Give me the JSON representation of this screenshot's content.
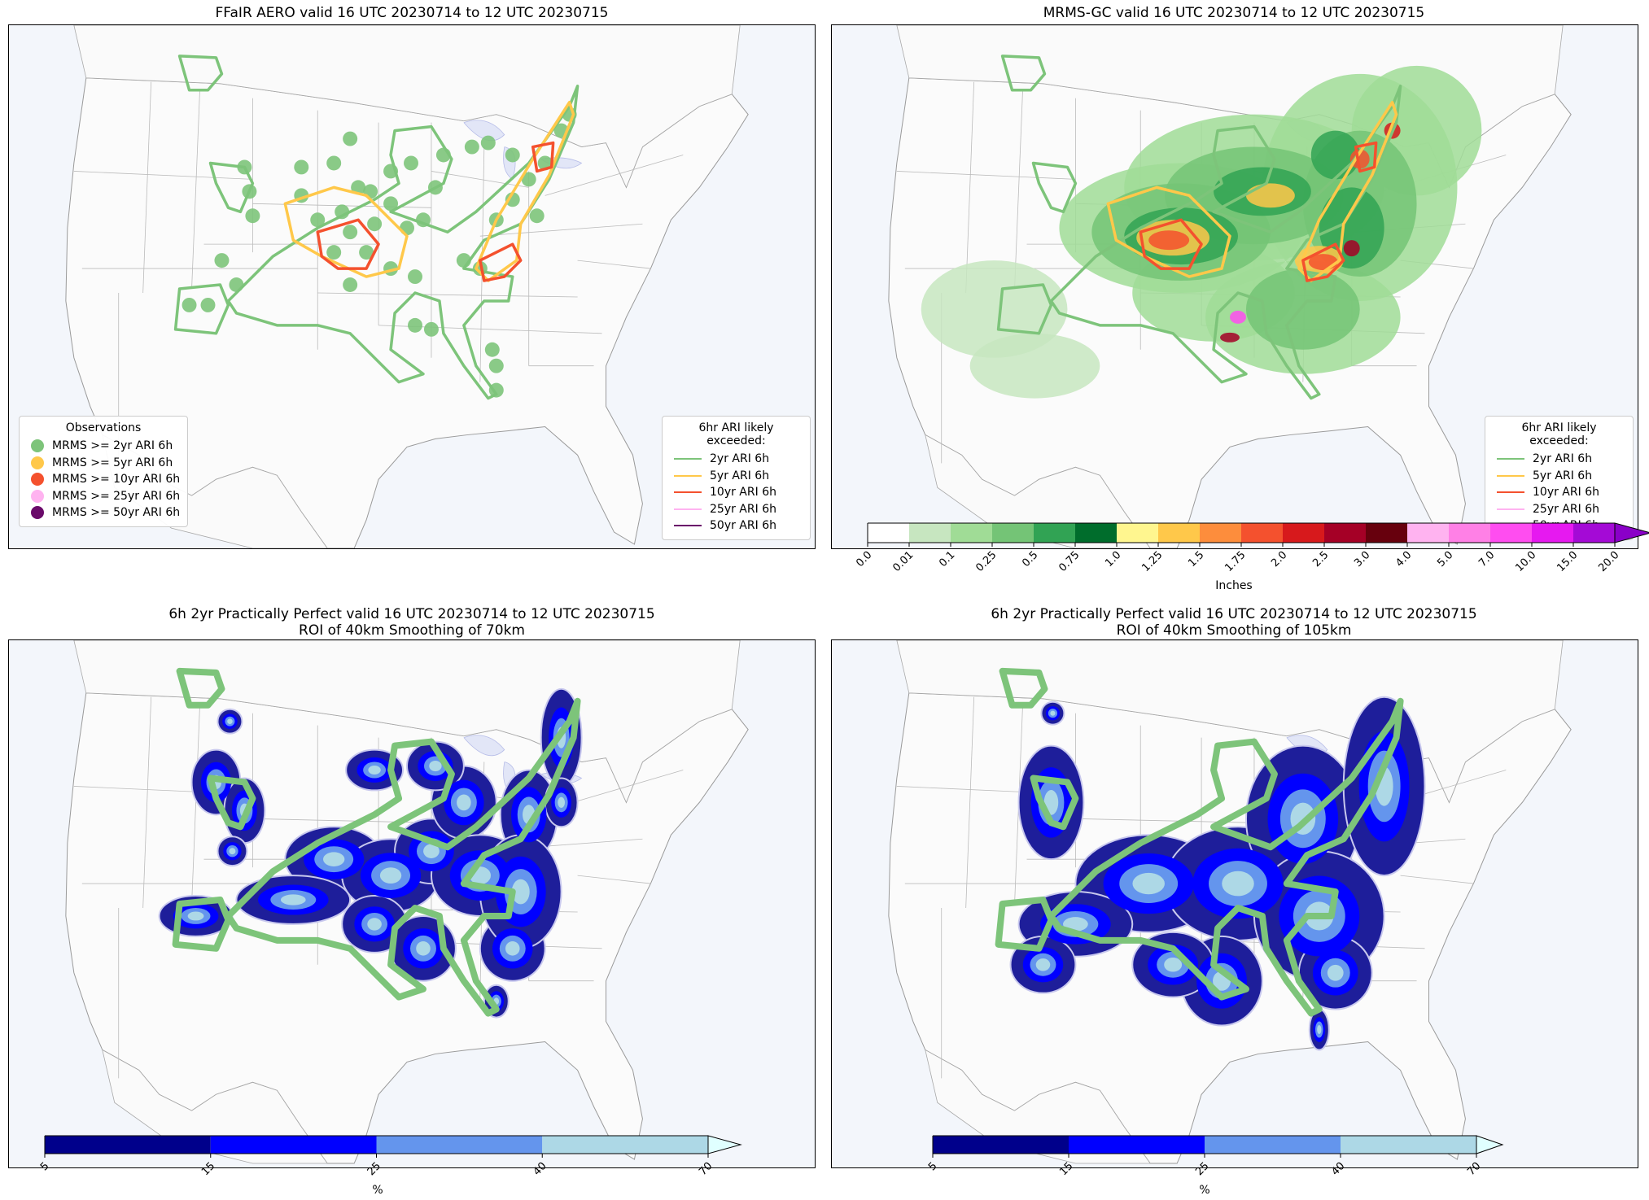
{
  "panels": [
    {
      "id": "p1",
      "title": "FFaIR AERO valid 16 UTC 20230714 to 12 UTC 20230715"
    },
    {
      "id": "p2",
      "title": "MRMS-GC valid 16 UTC 20230714 to 12 UTC 20230715"
    },
    {
      "id": "p3",
      "title": "6h 2yr Practically Perfect valid 16 UTC 20230714 to 12 UTC 20230715\nROI of 40km Smoothing of 70km"
    },
    {
      "id": "p4",
      "title": "6h 2yr Practically Perfect valid 16 UTC 20230714 to 12 UTC 20230715\nROI of 40km Smoothing of 105km"
    }
  ],
  "observations_legend": {
    "title": "Observations",
    "items": [
      {
        "label": "MRMS >= 2yr ARI 6h",
        "color": "#7dc47a"
      },
      {
        "label": "MRMS >= 5yr ARI 6h",
        "color": "#ffc84a"
      },
      {
        "label": "MRMS >= 10yr ARI 6h",
        "color": "#f4512e"
      },
      {
        "label": "MRMS >= 25yr ARI 6h",
        "color": "#ffb3f0"
      },
      {
        "label": "MRMS >= 50yr ARI 6h",
        "color": "#6a0a6a"
      }
    ]
  },
  "ari_legend": {
    "title": "6hr ARI likely exceeded:",
    "items": [
      {
        "label": "2yr ARI 6h",
        "color": "#7dc47a"
      },
      {
        "label": "5yr ARI 6h",
        "color": "#ffc84a"
      },
      {
        "label": "10yr ARI 6h",
        "color": "#f4512e"
      },
      {
        "label": "25yr ARI 6h",
        "color": "#ffb3f0"
      },
      {
        "label": "50yr ARI 6h",
        "color": "#6a0a6a"
      }
    ]
  },
  "precip_colorbar": {
    "label": "Inches",
    "ticks": [
      "0.0",
      "0.01",
      "0.1",
      "0.25",
      "0.5",
      "0.75",
      "1.0",
      "1.25",
      "1.5",
      "1.75",
      "2.0",
      "2.5",
      "3.0",
      "4.0",
      "5.0",
      "7.0",
      "10.0",
      "15.0",
      "20.0"
    ],
    "colors": [
      "#ffffff",
      "#c7e6c0",
      "#a0dc96",
      "#74c476",
      "#31a354",
      "#006d2c",
      "#fff68f",
      "#ffc84a",
      "#fd8d3c",
      "#f4512e",
      "#d7191c",
      "#a50026",
      "#67000d",
      "#ffb3f0",
      "#ff80e6",
      "#ff4df0",
      "#e619f0",
      "#a40ad6"
    ],
    "extend_color": "#8a00c8"
  },
  "pp_colorbar": {
    "label": "%",
    "ticks": [
      "5",
      "15",
      "25",
      "40",
      "70"
    ],
    "colors": [
      "#00008b",
      "#0000ff",
      "#6495ed",
      "#add8e6"
    ],
    "extend_color": "#e0ffff"
  }
}
